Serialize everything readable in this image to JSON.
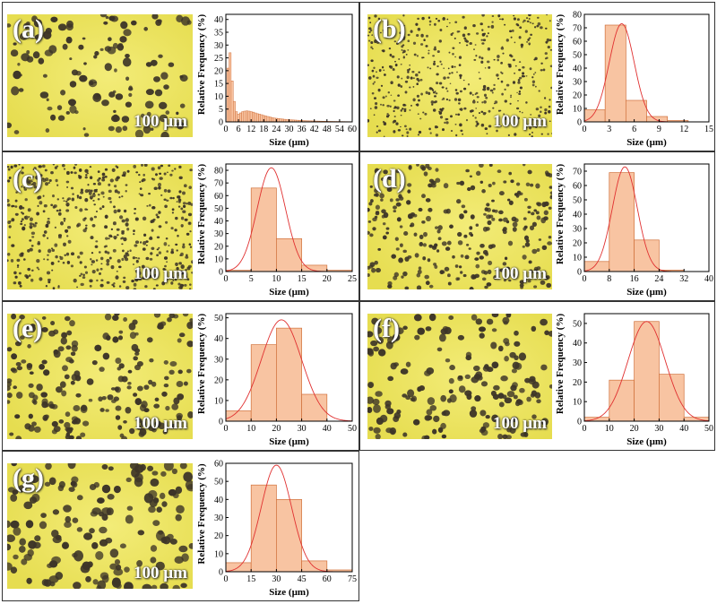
{
  "colors": {
    "micro_bg": "#e6dd50",
    "micro_bright": "#f3ec78",
    "particle": "#3d3528",
    "bar_fill": "#f8c4a2",
    "bar_stroke": "#d0703a",
    "fit": "#e03030"
  },
  "scale_bar": "100 µm",
  "panels": [
    {
      "label": "(a)",
      "density": 130,
      "size": [
        1.5,
        5
      ],
      "seed": 11
    },
    {
      "label": "(b)",
      "density": 520,
      "size": [
        0.8,
        1.8
      ],
      "seed": 22
    },
    {
      "label": "(c)",
      "density": 560,
      "size": [
        1,
        2.2
      ],
      "seed": 33
    },
    {
      "label": "(d)",
      "density": 300,
      "size": [
        1.6,
        3
      ],
      "seed": 44
    },
    {
      "label": "(e)",
      "density": 210,
      "size": [
        2.2,
        4
      ],
      "seed": 55
    },
    {
      "label": "(f)",
      "density": 180,
      "size": [
        2.5,
        4.4
      ],
      "seed": 66
    },
    {
      "label": "(g)",
      "density": 160,
      "size": [
        3,
        5.5
      ],
      "seed": 77
    }
  ],
  "chart_data": [
    {
      "type": "bar",
      "panel": "(a)",
      "xlabel": "Size (µm)",
      "ylabel": "Relative Frequency (%)",
      "xlim": [
        0,
        60
      ],
      "ylim": [
        0,
        42
      ],
      "xticks": [
        0,
        6,
        12,
        18,
        24,
        30,
        36,
        42,
        48,
        54,
        60
      ],
      "yticks": [
        0,
        5,
        10,
        15,
        20,
        25,
        30,
        35,
        40
      ],
      "bin_width": 1,
      "x": [
        1,
        2,
        3,
        4,
        5,
        6,
        7,
        8,
        9,
        10,
        11,
        12,
        13,
        14,
        15,
        16,
        17,
        18,
        19,
        20,
        21,
        22,
        23,
        24,
        25,
        26,
        27,
        28,
        29,
        30,
        31,
        32,
        33,
        34,
        35,
        36,
        37,
        38,
        39,
        40,
        41,
        42,
        43,
        44,
        45,
        46,
        47,
        48,
        49,
        50,
        51,
        52,
        53,
        54,
        55,
        56,
        57,
        58,
        59
      ],
      "values": [
        21,
        27,
        16,
        8,
        4,
        3,
        3.5,
        4,
        4.2,
        4.3,
        4.2,
        4,
        3.8,
        3.5,
        3.2,
        3,
        2.8,
        2.5,
        2.3,
        2.1,
        1.9,
        1.7,
        1.5,
        1.4,
        1.3,
        1.2,
        1.1,
        1,
        0.9,
        0.85,
        0.8,
        0.75,
        0.7,
        0.65,
        0.6,
        0.55,
        0.5,
        0.45,
        0.42,
        0.4,
        0.38,
        0.35,
        0.32,
        0.3,
        0.28,
        0.26,
        0.24,
        0.22,
        0.2,
        0.19,
        0.18,
        0.17,
        0.16,
        0.15,
        0.14,
        0.13,
        0.12,
        0.11,
        0.1
      ],
      "fit": null
    },
    {
      "type": "bar",
      "panel": "(b)",
      "xlabel": "Size (µm)",
      "ylabel": "Relative Frequency (%)",
      "xlim": [
        0,
        15
      ],
      "ylim": [
        0,
        80
      ],
      "xticks": [
        0,
        3,
        6,
        9,
        12,
        15
      ],
      "yticks": [
        0,
        10,
        20,
        30,
        40,
        50,
        60,
        70,
        80
      ],
      "bin_width": 2.5,
      "x": [
        1.25,
        3.75,
        6.25,
        8.75,
        11.25,
        13.75
      ],
      "values": [
        9,
        72,
        16,
        4,
        1,
        0
      ],
      "fit": {
        "amp": 73,
        "mu": 4.5,
        "sigma": 1.5
      }
    },
    {
      "type": "bar",
      "panel": "(c)",
      "xlabel": "Size (µm)",
      "ylabel": "Relative Frequency (%)",
      "xlim": [
        0,
        25
      ],
      "ylim": [
        0,
        85
      ],
      "xticks": [
        0,
        5,
        10,
        15,
        20,
        25
      ],
      "yticks": [
        0,
        10,
        20,
        30,
        40,
        50,
        60,
        70,
        80
      ],
      "bin_width": 5,
      "x": [
        2.5,
        7.5,
        12.5,
        17.5,
        22.5
      ],
      "values": [
        1,
        66,
        26,
        5,
        1
      ],
      "fit": {
        "amp": 82,
        "mu": 9,
        "sigma": 2.8
      }
    },
    {
      "type": "bar",
      "panel": "(d)",
      "xlabel": "Size (µm)",
      "ylabel": "Relative Frequency (%)",
      "xlim": [
        0,
        40
      ],
      "ylim": [
        0,
        75
      ],
      "xticks": [
        0,
        8,
        16,
        24,
        32,
        40
      ],
      "yticks": [
        0,
        10,
        20,
        30,
        40,
        50,
        60,
        70
      ],
      "bin_width": 8,
      "x": [
        4,
        12,
        20,
        28,
        36
      ],
      "values": [
        7,
        69,
        22,
        1,
        0
      ],
      "fit": {
        "amp": 73,
        "mu": 13,
        "sigma": 4
      }
    },
    {
      "type": "bar",
      "panel": "(e)",
      "xlabel": "Size (µm)",
      "ylabel": "Relative Frequency (%)",
      "xlim": [
        0,
        50
      ],
      "ylim": [
        0,
        52
      ],
      "xticks": [
        0,
        10,
        20,
        30,
        40,
        50
      ],
      "yticks": [
        0,
        10,
        20,
        30,
        40,
        50
      ],
      "bin_width": 10,
      "x": [
        5,
        15,
        25,
        35,
        45
      ],
      "values": [
        5,
        37,
        45,
        13,
        0
      ],
      "fit": {
        "amp": 49,
        "mu": 22,
        "sigma": 8
      }
    },
    {
      "type": "bar",
      "panel": "(f)",
      "xlabel": "Size (µm)",
      "ylabel": "Relative Frequency (%)",
      "xlim": [
        0,
        50
      ],
      "ylim": [
        0,
        55
      ],
      "xticks": [
        0,
        10,
        20,
        30,
        40,
        50
      ],
      "yticks": [
        0,
        10,
        20,
        30,
        40,
        50
      ],
      "bin_width": 10,
      "x": [
        5,
        15,
        25,
        35,
        45
      ],
      "values": [
        2,
        21,
        51,
        24,
        2
      ],
      "fit": {
        "amp": 51,
        "mu": 25,
        "sigma": 7.5
      }
    },
    {
      "type": "bar",
      "panel": "(g)",
      "xlabel": "Size (µm)",
      "ylabel": "Relative Frequency (%)",
      "xlim": [
        0,
        75
      ],
      "ylim": [
        0,
        60
      ],
      "xticks": [
        0,
        15,
        30,
        45,
        60,
        75
      ],
      "yticks": [
        0,
        10,
        20,
        30,
        40,
        50,
        60
      ],
      "bin_width": 15,
      "x": [
        7.5,
        22.5,
        37.5,
        52.5,
        67.5
      ],
      "values": [
        5,
        48,
        40,
        6,
        1
      ],
      "fit": {
        "amp": 59,
        "mu": 30,
        "sigma": 9
      }
    }
  ]
}
